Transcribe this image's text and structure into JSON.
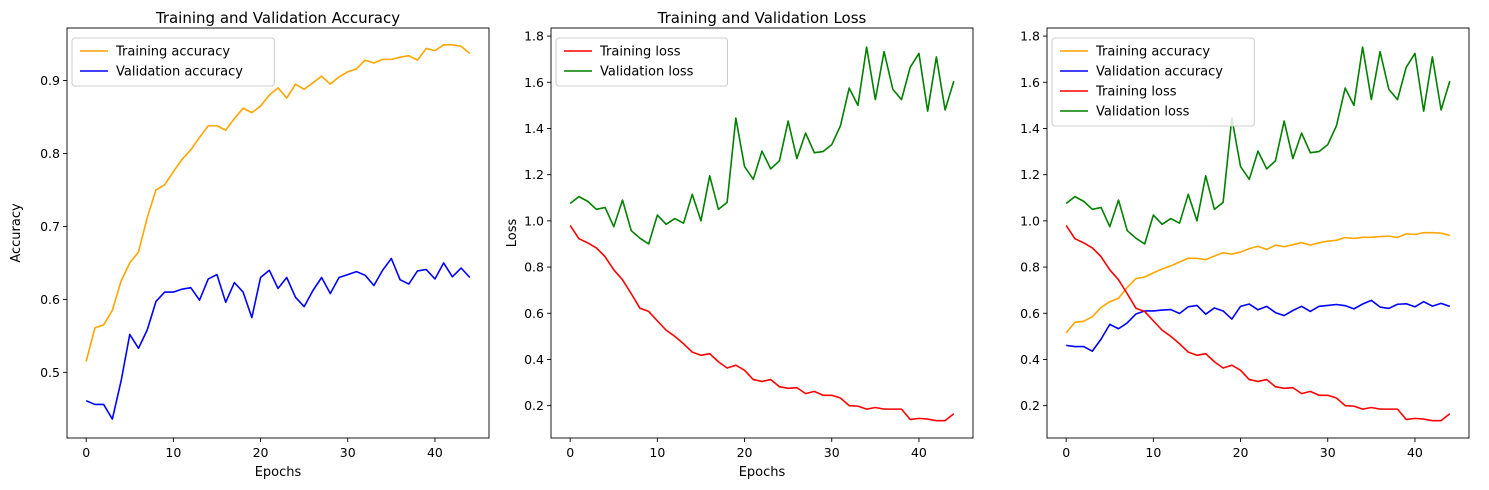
{
  "chart_data": [
    {
      "type": "line",
      "title": "Training and Validation Accuracy",
      "xlabel": "Epochs",
      "ylabel": "Accuracy",
      "xlim": [
        -2.2,
        46.2
      ],
      "ylim": [
        0.41,
        0.972
      ],
      "xticks": [
        0,
        10,
        20,
        30,
        40
      ],
      "yticks": [
        0.5,
        0.6,
        0.7,
        0.8,
        0.9
      ],
      "ytick_labels": [
        "0.5",
        "0.6",
        "0.7",
        "0.8",
        "0.9"
      ],
      "legend_position": "upper-left",
      "grid": false,
      "series": [
        {
          "name": "Training accuracy",
          "ref": "train_acc",
          "color": "#ffa500"
        },
        {
          "name": "Validation accuracy",
          "ref": "val_acc",
          "color": "#0000ff"
        }
      ]
    },
    {
      "type": "line",
      "title": "Training and Validation Loss",
      "xlabel": "Epochs",
      "ylabel": "Loss",
      "xlim": [
        -2.2,
        46.2
      ],
      "ylim": [
        0.06,
        1.835
      ],
      "xticks": [
        0,
        10,
        20,
        30,
        40
      ],
      "yticks": [
        0.2,
        0.4,
        0.6,
        0.8,
        1.0,
        1.2,
        1.4,
        1.6,
        1.8
      ],
      "ytick_labels": [
        "0.2",
        "0.4",
        "0.6",
        "0.8",
        "1.0",
        "1.2",
        "1.4",
        "1.6",
        "1.8"
      ],
      "legend_position": "upper-left",
      "grid": false,
      "series": [
        {
          "name": "Training loss",
          "ref": "train_loss",
          "color": "#ff0000"
        },
        {
          "name": "Validation loss",
          "ref": "val_loss",
          "color": "#008000"
        }
      ]
    },
    {
      "type": "line",
      "title": "",
      "xlabel": "",
      "ylabel": "",
      "xlim": [
        -2.2,
        46.2
      ],
      "ylim": [
        0.06,
        1.835
      ],
      "xticks": [
        0,
        10,
        20,
        30,
        40
      ],
      "yticks": [
        0.2,
        0.4,
        0.6,
        0.8,
        1.0,
        1.2,
        1.4,
        1.6,
        1.8
      ],
      "ytick_labels": [
        "0.2",
        "0.4",
        "0.6",
        "0.8",
        "1.0",
        "1.2",
        "1.4",
        "1.6",
        "1.8"
      ],
      "legend_position": "upper-left",
      "grid": false,
      "series": [
        {
          "name": "Training accuracy",
          "ref": "train_acc",
          "color": "#ffa500"
        },
        {
          "name": "Validation accuracy",
          "ref": "val_acc",
          "color": "#0000ff"
        },
        {
          "name": "Training loss",
          "ref": "train_loss",
          "color": "#ff0000"
        },
        {
          "name": "Validation loss",
          "ref": "val_loss",
          "color": "#008000"
        }
      ]
    }
  ],
  "series_values": {
    "x": [
      0,
      1,
      2,
      3,
      4,
      5,
      6,
      7,
      8,
      9,
      10,
      11,
      12,
      13,
      14,
      15,
      16,
      17,
      18,
      19,
      20,
      21,
      22,
      23,
      24,
      25,
      26,
      27,
      28,
      29,
      30,
      31,
      32,
      33,
      34,
      35,
      36,
      37,
      38,
      39,
      40,
      41,
      42,
      43,
      44
    ],
    "train_acc": [
      0.515,
      0.561,
      0.565,
      0.585,
      0.625,
      0.65,
      0.665,
      0.712,
      0.75,
      0.757,
      0.775,
      0.792,
      0.805,
      0.822,
      0.838,
      0.838,
      0.832,
      0.848,
      0.862,
      0.856,
      0.865,
      0.88,
      0.89,
      0.876,
      0.895,
      0.888,
      0.897,
      0.906,
      0.895,
      0.905,
      0.912,
      0.916,
      0.928,
      0.924,
      0.929,
      0.929,
      0.932,
      0.934,
      0.928,
      0.944,
      0.941,
      0.949,
      0.949,
      0.947,
      0.937
    ],
    "val_acc": [
      0.461,
      0.456,
      0.456,
      0.436,
      0.488,
      0.552,
      0.533,
      0.558,
      0.597,
      0.61,
      0.61,
      0.614,
      0.616,
      0.599,
      0.628,
      0.634,
      0.596,
      0.623,
      0.61,
      0.575,
      0.63,
      0.64,
      0.615,
      0.63,
      0.603,
      0.59,
      0.612,
      0.63,
      0.608,
      0.63,
      0.634,
      0.638,
      0.633,
      0.619,
      0.64,
      0.656,
      0.627,
      0.621,
      0.639,
      0.641,
      0.628,
      0.65,
      0.631,
      0.643,
      0.63
    ],
    "train_loss": [
      0.98,
      0.923,
      0.905,
      0.883,
      0.845,
      0.788,
      0.745,
      0.685,
      0.622,
      0.608,
      0.567,
      0.527,
      0.5,
      0.468,
      0.432,
      0.418,
      0.425,
      0.39,
      0.363,
      0.375,
      0.353,
      0.313,
      0.305,
      0.313,
      0.282,
      0.275,
      0.278,
      0.252,
      0.262,
      0.245,
      0.245,
      0.233,
      0.2,
      0.198,
      0.185,
      0.192,
      0.185,
      0.185,
      0.185,
      0.14,
      0.145,
      0.142,
      0.135,
      0.135,
      0.165
    ],
    "val_loss": [
      1.075,
      1.105,
      1.085,
      1.05,
      1.058,
      0.975,
      1.09,
      0.958,
      0.925,
      0.9,
      1.025,
      0.985,
      1.01,
      0.99,
      1.115,
      1.0,
      1.195,
      1.05,
      1.08,
      1.445,
      1.235,
      1.18,
      1.302,
      1.225,
      1.26,
      1.432,
      1.27,
      1.38,
      1.295,
      1.3,
      1.33,
      1.412,
      1.575,
      1.5,
      1.752,
      1.525,
      1.733,
      1.57,
      1.525,
      1.665,
      1.725,
      1.475,
      1.71,
      1.48,
      1.605
    ]
  }
}
